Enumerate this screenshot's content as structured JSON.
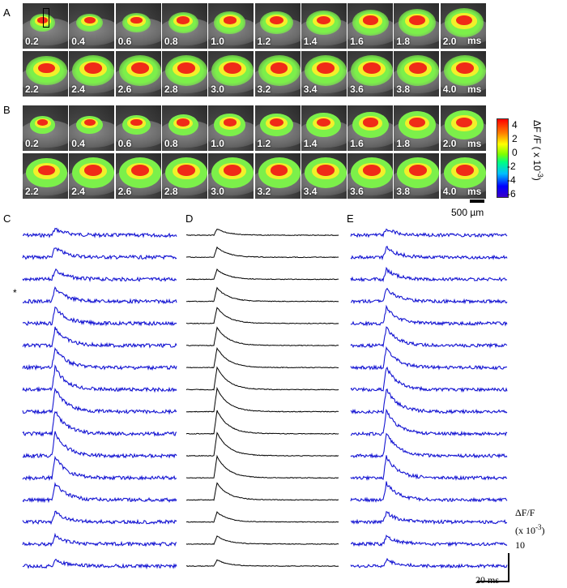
{
  "panels": {
    "A": {
      "label": "A",
      "unit": "ms",
      "row1": [
        "0.2",
        "0.4",
        "0.6",
        "0.8",
        "1.0",
        "1.2",
        "1.4",
        "1.6",
        "1.8",
        "2.0"
      ],
      "row2": [
        "2.2",
        "2.4",
        "2.6",
        "2.8",
        "3.0",
        "3.2",
        "3.4",
        "3.6",
        "3.8",
        "4.0"
      ]
    },
    "B": {
      "label": "B",
      "unit": "ms",
      "row1": [
        "0.2",
        "0.4",
        "0.6",
        "0.8",
        "1.0",
        "1.2",
        "1.4",
        "1.6",
        "1.8",
        "2.0"
      ],
      "row2": [
        "2.2",
        "2.4",
        "2.6",
        "2.8",
        "3.0",
        "3.2",
        "3.4",
        "3.6",
        "3.8",
        "4.0"
      ]
    },
    "C": {
      "label": "C",
      "trace_color": "#1414d2",
      "marker": "*"
    },
    "D": {
      "label": "D",
      "trace_color": "#000000"
    },
    "E": {
      "label": "E",
      "trace_color": "#1414d2"
    }
  },
  "colorbar": {
    "ticks": [
      "4",
      "2",
      "0",
      "-2",
      "-4",
      "-6"
    ],
    "label": "ΔF /F ( x 10",
    "label_exp": "-3",
    "label_close": ")"
  },
  "image_scale": {
    "label": "500 µm"
  },
  "trace_scale": {
    "y_line1": "ΔF/F",
    "y_line2": "(x 10",
    "y_exp": "-3",
    "y_close": ")",
    "y_value": "10",
    "x_label": "20 ms"
  },
  "traces": {
    "count": 16,
    "amplitudes": [
      0.35,
      0.55,
      0.55,
      0.75,
      0.9,
      1.0,
      1.1,
      1.25,
      1.3,
      1.3,
      1.3,
      1.2,
      0.95,
      0.55,
      0.45,
      0.35
    ]
  },
  "colors": {
    "blue": "#1414d2",
    "black": "#000000",
    "red": "#ff0000",
    "yellow": "#ffff00",
    "green": "#3cff3c"
  }
}
